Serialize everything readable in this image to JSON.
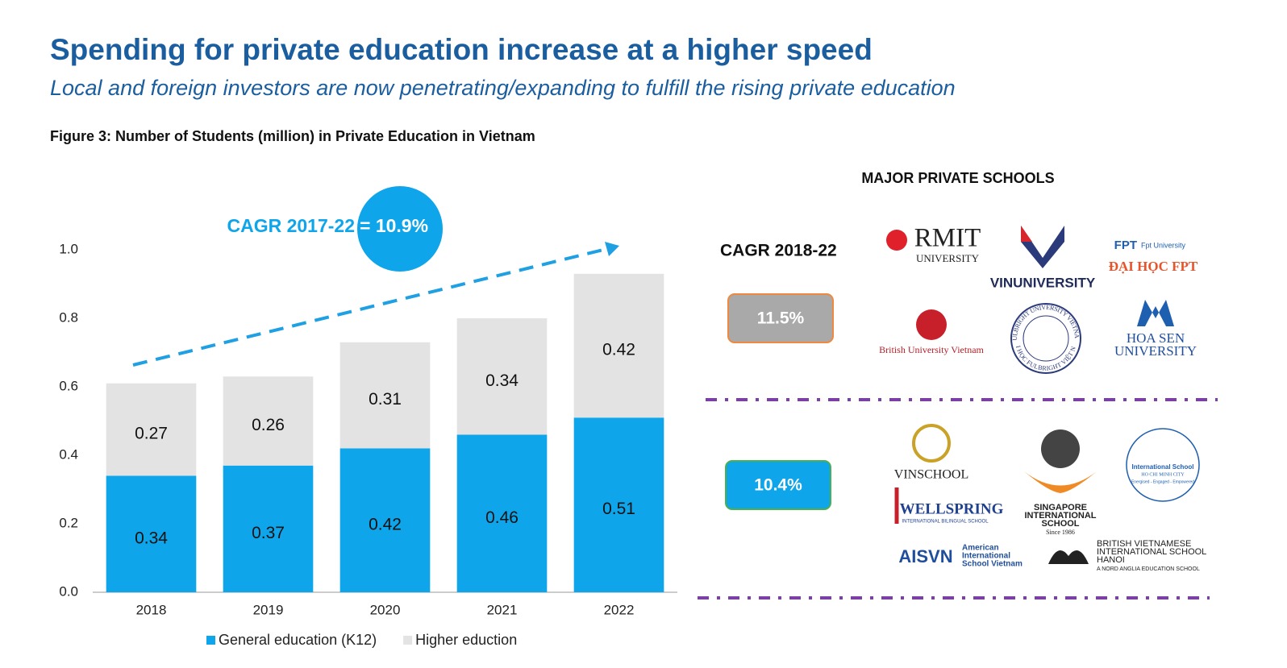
{
  "header": {
    "title": "Spending for private education increase at a higher speed",
    "subtitle": "Local and foreign investors are now penetrating/expanding to fulfill the rising private education"
  },
  "chart_data": {
    "type": "stacked_bar",
    "title": "Figure 3: Number of Students (million) in Private Education in Vietnam",
    "categories": [
      "2018",
      "2019",
      "2020",
      "2021",
      "2022"
    ],
    "series": [
      {
        "name": "General education (K12)",
        "color": "#0ea5ea",
        "values": [
          0.34,
          0.37,
          0.42,
          0.46,
          0.51
        ]
      },
      {
        "name": "Higher eduction",
        "color": "#e3e3e3",
        "values": [
          0.27,
          0.26,
          0.31,
          0.34,
          0.42
        ]
      }
    ],
    "ylim": [
      0,
      1.0
    ],
    "yticks": [
      {
        "value": 0,
        "label": "0.0"
      },
      0.2,
      0.4,
      0.6,
      {
        "value": 1,
        "label": "1.0"
      },
      0.8
    ],
    "annotation_label": "CAGR 2017-22",
    "annotation_value": "= 10.9%",
    "legend": "bottom"
  },
  "schools": {
    "title": "MAJOR PRIVATE SCHOOLS",
    "cagr_label": "CAGR 2018-22",
    "groups": [
      {
        "cagr": "11.5%",
        "logos": [
          {
            "lines": [
              "RMIT",
              "UNIVERSITY"
            ]
          },
          {
            "lines": [
              "VINUNIVERSITY"
            ]
          },
          {
            "lines": [
              "FPT",
              "Fpt University",
              "ĐẠI HỌC FPT"
            ]
          },
          {
            "lines": [
              "British University Vietnam"
            ]
          },
          {
            "lines": [
              "FULBRIGHT UNIVERSITY VIETNAM",
              "ĐẠI HỌC FULBRIGHT VIỆT NAM"
            ]
          },
          {
            "lines": [
              "HOA SEN",
              "UNIVERSITY"
            ]
          }
        ]
      },
      {
        "cagr": "10.4%",
        "logos": [
          {
            "lines": [
              "VINSCHOOL"
            ]
          },
          {
            "lines": [
              "SINGAPORE",
              "INTERNATIONAL",
              "SCHOOL",
              "Since 1986"
            ]
          },
          {
            "lines": [
              "International School",
              "HO CHI MINH CITY",
              "Energised - Engaged - Empowered"
            ]
          },
          {
            "lines": [
              "WELLSPRING",
              "INTERNATIONAL BILINGUAL SCHOOL"
            ]
          },
          {
            "lines": [
              "AISVN",
              "American",
              "International",
              "School Vietnam"
            ]
          },
          {
            "lines": [
              "BRITISH VIETNAMESE",
              "INTERNATIONAL SCHOOL",
              "HANOI",
              "A NORD ANGLIA EDUCATION SCHOOL"
            ]
          }
        ]
      }
    ]
  }
}
